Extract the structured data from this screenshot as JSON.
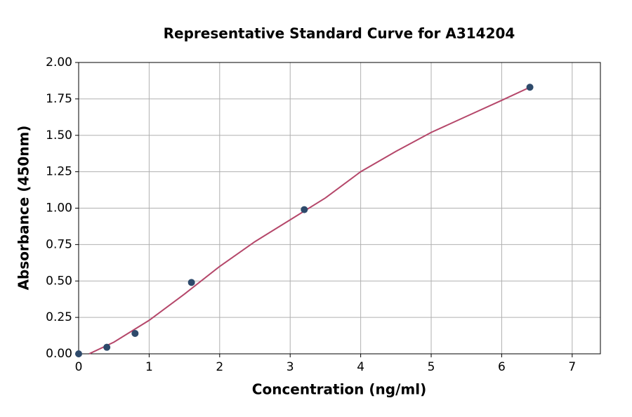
{
  "chart_data": {
    "type": "scatter",
    "title": "Representative Standard Curve for A314204",
    "x_label": "Concentration (ng/ml)",
    "y_label": "Absorbance (450nm)",
    "xlim": [
      0,
      7.4
    ],
    "ylim": [
      0,
      2
    ],
    "xticks": [
      0,
      1,
      2,
      3,
      4,
      5,
      6,
      7
    ],
    "yticks": [
      {
        "value": 0,
        "label": "0.00"
      },
      {
        "value": 0.25,
        "label": "0.25"
      },
      {
        "value": 0.5,
        "label": "0.50"
      },
      {
        "value": 0.75,
        "label": "0.75"
      },
      {
        "value": 1,
        "label": "1.00"
      },
      {
        "value": 1.25,
        "label": "1.25"
      },
      {
        "value": 1.5,
        "label": "1.50"
      },
      {
        "value": 1.75,
        "label": "1.75"
      },
      {
        "value": 2,
        "label": "2.00"
      }
    ],
    "grid": true,
    "series": [
      {
        "mode": "line",
        "color": "#b5476a",
        "x": [
          0.15,
          0.5,
          1,
          1.5,
          2,
          2.5,
          3,
          3.5,
          4,
          4.5,
          5,
          5.5,
          6,
          6.4
        ],
        "values": [
          0,
          0.08,
          0.23,
          0.41,
          0.6,
          0.77,
          0.92,
          1.07,
          1.25,
          1.39,
          1.52,
          1.63,
          1.74,
          1.83
        ]
      },
      {
        "mode": "markers",
        "color": "#2e4a6b",
        "x": [
          0,
          0.4,
          0.8,
          1.6,
          3.2,
          6.4
        ],
        "values": [
          0,
          0.045,
          0.14,
          0.49,
          0.99,
          1.83
        ]
      }
    ]
  }
}
